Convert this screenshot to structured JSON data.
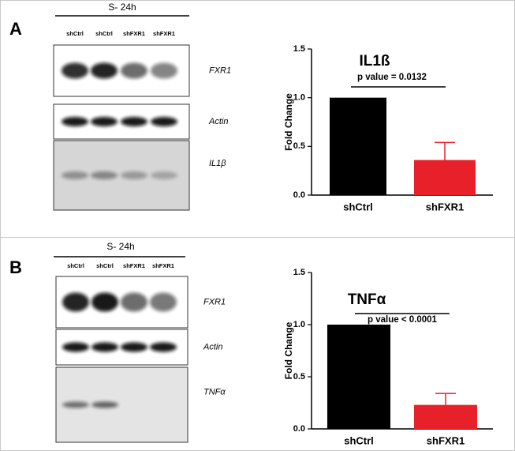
{
  "panels": [
    {
      "letter": "A",
      "condition": "S- 24h",
      "lanes": [
        "shCtrl",
        "shCtrl",
        "shFXR1",
        "shFXR1"
      ],
      "blots": [
        "FXR1",
        "Actin",
        "IL1β"
      ]
    },
    {
      "letter": "B",
      "condition": "S- 24h",
      "lanes": [
        "shCtrl",
        "shCtrl",
        "shFXR1",
        "shFXR1"
      ],
      "blots": [
        "FXR1",
        "Actin",
        "TNFα"
      ]
    }
  ],
  "chart_data": [
    {
      "type": "bar",
      "title": "IL1ß",
      "annotation": "p value = 0.0132",
      "y_label": "Fold Change",
      "categories": [
        "shCtrl",
        "shFXR1"
      ],
      "values": [
        1.0,
        0.36
      ],
      "errors": [
        null,
        0.18
      ],
      "colors": [
        "#000000",
        "#e8202a"
      ],
      "ylim": [
        0,
        1.5
      ],
      "yticks": [
        {
          "value": 0,
          "label": "0.0"
        },
        0.5,
        {
          "value": 1,
          "label": "1.0"
        },
        1.5
      ]
    },
    {
      "type": "bar",
      "title": "TNFα",
      "annotation": "p value < 0.0001",
      "y_label": "Fold Change",
      "categories": [
        "shCtrl",
        "shFXR1"
      ],
      "values": [
        1.0,
        0.23
      ],
      "errors": [
        null,
        0.11
      ],
      "colors": [
        "#000000",
        "#e8202a"
      ],
      "ylim": [
        0,
        1.5
      ],
      "yticks": [
        {
          "value": 0,
          "label": "0.0"
        },
        0.5,
        {
          "value": 1,
          "label": "1.0"
        },
        1.5
      ]
    }
  ]
}
